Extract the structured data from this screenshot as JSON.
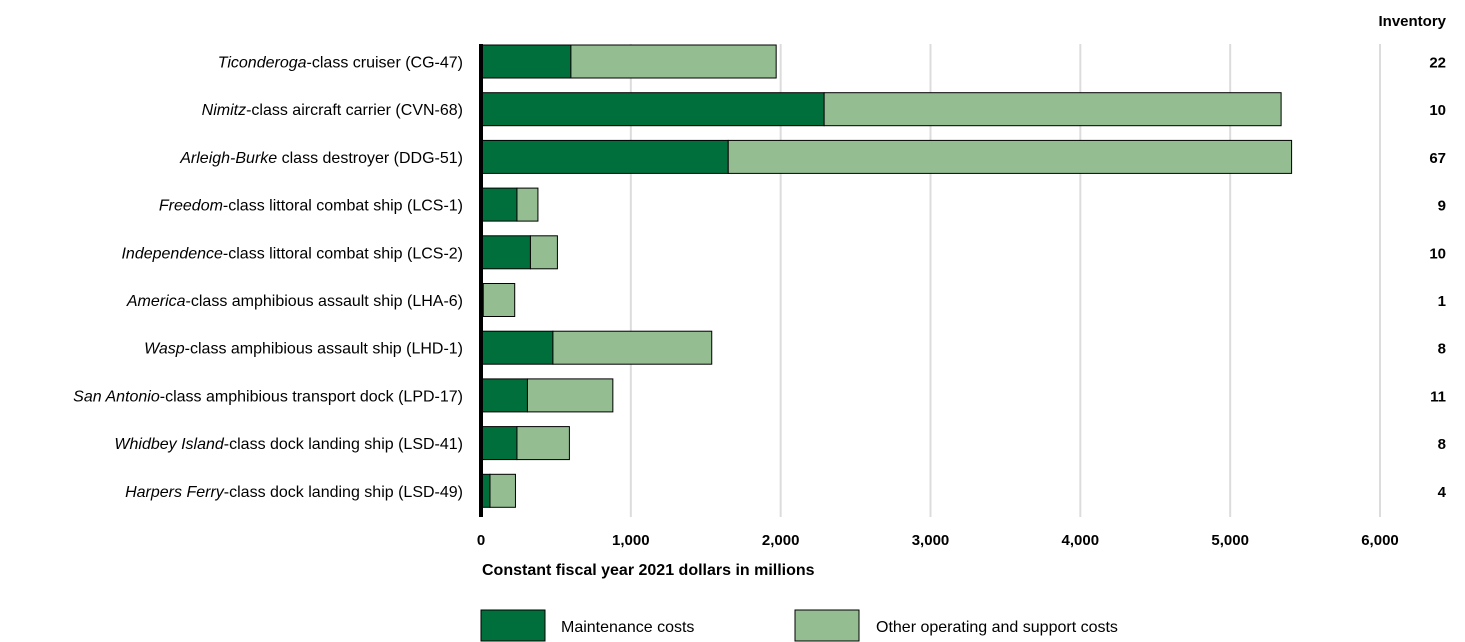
{
  "colors": {
    "maintenance": "#006f3c",
    "other": "#94bd92",
    "grid": "#dcdcdc",
    "outline": "#000000"
  },
  "chart_data": {
    "type": "bar",
    "orientation": "horizontal",
    "stacked": true,
    "categories": [
      {
        "italic": "Ticonderoga",
        "rest": "-class cruiser (CG-47)"
      },
      {
        "italic": "Nimitz",
        "rest": "-class aircraft carrier (CVN-68)"
      },
      {
        "italic": "Arleigh-Burke",
        "rest": " class destroyer (DDG-51)"
      },
      {
        "italic": "Freedom",
        "rest": "-class littoral combat ship (LCS-1)"
      },
      {
        "italic": "Independence",
        "rest": "-class littoral combat ship (LCS-2)"
      },
      {
        "italic": "America",
        "rest": "-class amphibious assault ship (LHA-6)"
      },
      {
        "italic": "Wasp",
        "rest": "-class amphibious assault ship (LHD-1)"
      },
      {
        "italic": "San Antonio",
        "rest": "-class amphibious transport dock (LPD-17)"
      },
      {
        "italic": "Whidbey Island",
        "rest": "-class dock landing ship (LSD-41)"
      },
      {
        "italic": "Harpers Ferry",
        "rest": "-class dock landing ship (LSD-49)"
      }
    ],
    "series": [
      {
        "name": "Maintenance costs",
        "color": "#006f3c",
        "values": [
          600,
          2290,
          1650,
          240,
          330,
          15,
          480,
          310,
          240,
          60
        ]
      },
      {
        "name": "Other operating and support costs",
        "color": "#94bd92",
        "values": [
          1370,
          3050,
          3760,
          140,
          180,
          210,
          1060,
          570,
          350,
          170
        ]
      }
    ],
    "inventory_title": "Inventory",
    "inventory": [
      "22",
      "10",
      "67",
      "9",
      "10",
      "1",
      "8",
      "11",
      "8",
      "4"
    ],
    "xlabel": "Constant fiscal year 2021 dollars in millions",
    "xlim": [
      0,
      6000
    ],
    "xticks": [
      0,
      1000,
      2000,
      3000,
      4000,
      5000,
      6000
    ],
    "xtick_labels": [
      "0",
      "1,000",
      "2,000",
      "3,000",
      "4,000",
      "5,000",
      "6,000"
    ],
    "grid": "vertical",
    "legend_position": "bottom"
  }
}
